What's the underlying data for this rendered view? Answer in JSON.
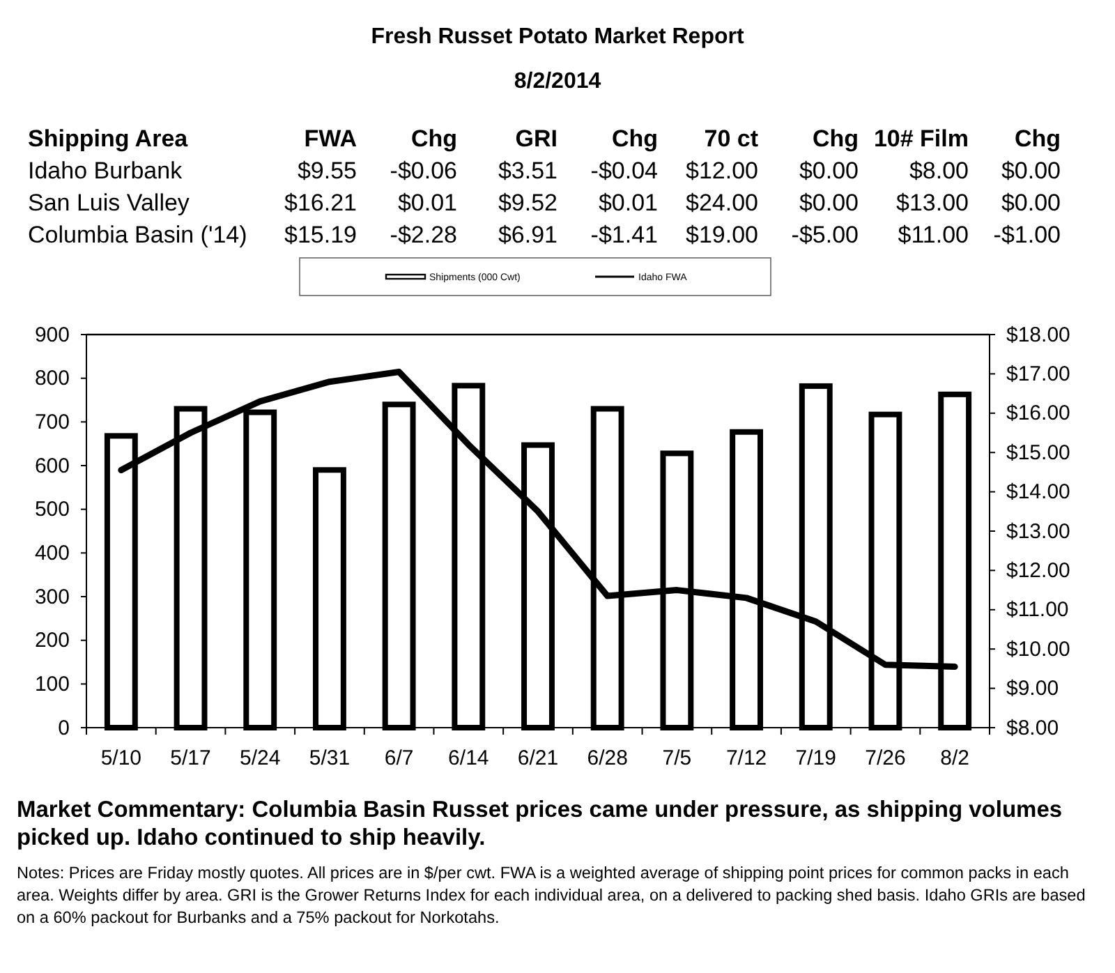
{
  "chart_data": [
    {
      "type": "other",
      "title": "Fresh Russet Potato Market Report",
      "subtitle": "8/2/2014",
      "annotations": [
        "Shipping Area",
        "FWA",
        "Chg",
        "GRI",
        "Chg",
        "70 ct",
        "Chg",
        "10# Film",
        "Chg",
        "Idaho Burbank",
        "$9.55",
        "-$0.06",
        "$3.51",
        "-$0.04",
        "$12.00",
        "$0.00",
        "$8.00",
        "$0.00",
        "San Luis Valley",
        "$16.21",
        "$0.01",
        "$9.52",
        "$0.01",
        "$24.00",
        "$0.00",
        "$13.00",
        "$0.00",
        "Columbia Basin ('14)",
        "$15.19",
        "-$2.28",
        "$6.91",
        "-$1.41",
        "$19.00",
        "-$5.00",
        "$11.00",
        "-$1.00"
      ]
    },
    {
      "type": "bar",
      "categories": [
        "5/10",
        "5/17",
        "5/24",
        "5/31",
        "6/7",
        "6/14",
        "6/21",
        "6/28",
        "7/5",
        "7/12",
        "7/19",
        "7/26",
        "8/2"
      ],
      "series": [
        {
          "name": "Shipments (000 Cwt)",
          "type": "bar",
          "color": "#ffffff",
          "values": [
            668,
            730,
            722,
            590,
            740,
            783,
            647,
            730,
            628,
            677,
            782,
            717,
            763
          ]
        },
        {
          "name": "Idaho FWA",
          "type": "line",
          "axis": "y2",
          "color": "#000000",
          "values": [
            14.55,
            15.5,
            16.3,
            16.8,
            17.05,
            15.2,
            13.5,
            11.35,
            11.5,
            11.3,
            10.7,
            9.6,
            9.55
          ]
        }
      ],
      "ylim": [
        0,
        900
      ],
      "yticks": [
        0,
        100,
        200,
        300,
        400,
        500,
        600,
        700,
        800,
        900
      ],
      "y2lim": [
        8,
        18
      ],
      "y2ticks": [
        {
          "value": 8,
          "label": "$8.00"
        },
        {
          "value": 9,
          "label": "$9.00"
        },
        {
          "value": 10,
          "label": "$10.00"
        },
        {
          "value": 11,
          "label": "$11.00"
        },
        {
          "value": 12,
          "label": "$12.00"
        },
        {
          "value": 13,
          "label": "$13.00"
        },
        {
          "value": 14,
          "label": "$14.00"
        },
        {
          "value": 15,
          "label": "$15.00"
        },
        {
          "value": 16,
          "label": "$16.00"
        },
        {
          "value": 17,
          "label": "$17.00"
        },
        {
          "value": 18,
          "label": "$18.00"
        }
      ],
      "legend": "top",
      "grid": false,
      "marker": "none",
      "line_style": "solid",
      "annotations": [
        "Market Commentary: Columbia Basin Russet prices came under pressure, as shipping volumes picked up. Idaho continued to ship heavily.",
        "Notes: Prices are Friday mostly quotes. All prices are in $/per cwt. FWA is a weighted average of shipping point prices for  common packs in each area. Weights differ by area. GRI is the Grower Returns Index for each individual area, on a delivered to packing shed basis. Idaho GRIs are based on a 60% packout for Burbanks and a 75% packout for Norkotahs."
      ]
    }
  ]
}
